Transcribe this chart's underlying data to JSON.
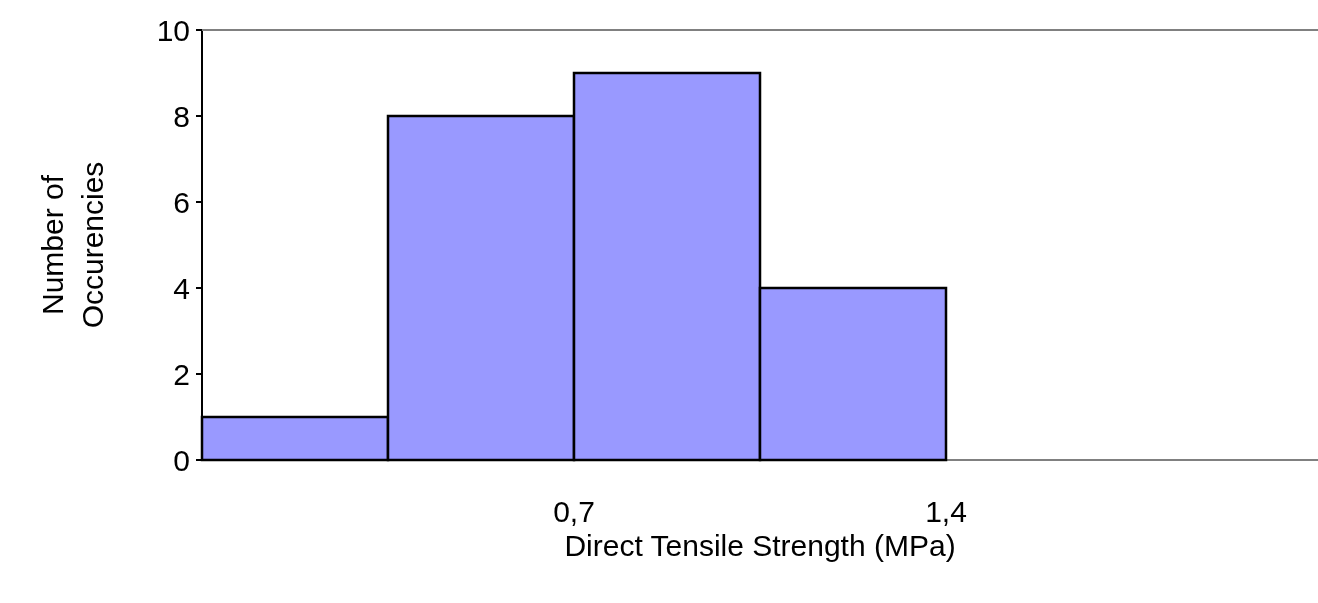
{
  "chart_data": {
    "type": "histogram",
    "xlabel": "Direct Tensile Strength (MPa)",
    "ylabel": "Number of Occurencies",
    "bins": [
      0,
      0.35,
      0.7,
      1.05,
      1.4
    ],
    "values": [
      1,
      8,
      9,
      4
    ],
    "color": "#9999ff",
    "xlim": [
      0,
      2.1
    ],
    "xticks": [
      {
        "value": 0.7,
        "label": "0,7"
      },
      {
        "value": 1.4,
        "label": "1,4"
      }
    ],
    "ylim": [
      0,
      10
    ],
    "yticks": [
      0,
      2,
      4,
      6,
      8,
      10
    ],
    "grid": false
  }
}
